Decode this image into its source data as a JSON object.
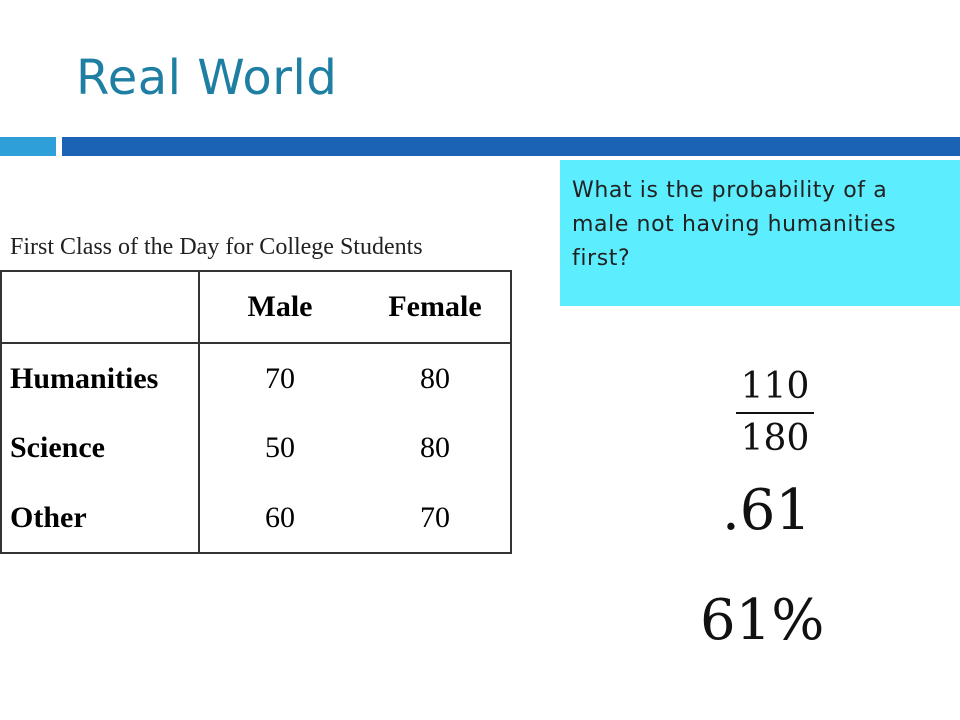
{
  "slide": {
    "title": "Real World",
    "caption": "First Class of the Day for College Students",
    "question": "What is the probability of a male not having humanities first?",
    "answer_fraction": {
      "numerator": "110",
      "denominator": "180"
    },
    "answer_decimal": ".61",
    "answer_percent": "61%"
  },
  "table": {
    "headers": [
      "",
      "Male",
      "Female"
    ],
    "rows": [
      {
        "label": "Humanities",
        "male": "70",
        "female": "80"
      },
      {
        "label": "Science",
        "male": "50",
        "female": "80"
      },
      {
        "label": "Other",
        "male": "60",
        "female": "70"
      }
    ]
  },
  "colors": {
    "title": "#1f7fa3",
    "bar_small": "#2e9fd8",
    "bar_large": "#1a63b5",
    "callout_bg": "#5ceeff"
  }
}
